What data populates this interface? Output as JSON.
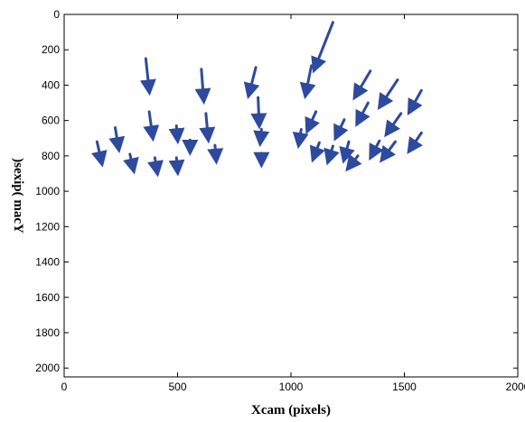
{
  "chart_data": {
    "type": "quiver",
    "title": "",
    "xlabel": "Xcam (pixels)",
    "ylabel": "Ycam (pixels)",
    "ylabel_rendered": ")sexip( macY",
    "xlim": [
      0,
      2000
    ],
    "ylim": [
      0,
      2050
    ],
    "y_reversed": true,
    "x_ticks": [
      "0",
      "500",
      "1000",
      "1500",
      "2000"
    ],
    "y_ticks": [
      "0",
      "200",
      "400",
      "600",
      "800",
      "1000",
      "1200",
      "1400",
      "1600",
      "1800",
      "2000"
    ],
    "x_tick_values": [
      0,
      500,
      1000,
      1500,
      2000
    ],
    "y_tick_values": [
      0,
      200,
      400,
      600,
      800,
      1000,
      1200,
      1400,
      1600,
      1800,
      2000
    ],
    "grid": false,
    "arrow_color": "#2e4a9e",
    "vectors": [
      {
        "x": 145,
        "y": 720,
        "x_end": 165,
        "y_end": 835
      },
      {
        "x": 225,
        "y": 640,
        "x_end": 240,
        "y_end": 755
      },
      {
        "x": 290,
        "y": 790,
        "x_end": 305,
        "y_end": 875
      },
      {
        "x": 360,
        "y": 250,
        "x_end": 375,
        "y_end": 430
      },
      {
        "x": 375,
        "y": 550,
        "x_end": 390,
        "y_end": 690
      },
      {
        "x": 400,
        "y": 810,
        "x_end": 410,
        "y_end": 890
      },
      {
        "x": 495,
        "y": 630,
        "x_end": 500,
        "y_end": 705
      },
      {
        "x": 495,
        "y": 810,
        "x_end": 500,
        "y_end": 885
      },
      {
        "x": 555,
        "y": 710,
        "x_end": 555,
        "y_end": 770
      },
      {
        "x": 605,
        "y": 310,
        "x_end": 615,
        "y_end": 480
      },
      {
        "x": 625,
        "y": 560,
        "x_end": 635,
        "y_end": 700
      },
      {
        "x": 665,
        "y": 740,
        "x_end": 670,
        "y_end": 820
      },
      {
        "x": 845,
        "y": 300,
        "x_end": 815,
        "y_end": 450
      },
      {
        "x": 855,
        "y": 470,
        "x_end": 860,
        "y_end": 620
      },
      {
        "x": 870,
        "y": 650,
        "x_end": 865,
        "y_end": 720
      },
      {
        "x": 870,
        "y": 785,
        "x_end": 870,
        "y_end": 840
      },
      {
        "x": 1185,
        "y": 45,
        "x_end": 1105,
        "y_end": 305
      },
      {
        "x": 1090,
        "y": 290,
        "x_end": 1065,
        "y_end": 450
      },
      {
        "x": 1045,
        "y": 650,
        "x_end": 1035,
        "y_end": 730
      },
      {
        "x": 1110,
        "y": 550,
        "x_end": 1075,
        "y_end": 650
      },
      {
        "x": 1125,
        "y": 725,
        "x_end": 1100,
        "y_end": 810
      },
      {
        "x": 1185,
        "y": 745,
        "x_end": 1165,
        "y_end": 825
      },
      {
        "x": 1235,
        "y": 595,
        "x_end": 1200,
        "y_end": 690
      },
      {
        "x": 1350,
        "y": 320,
        "x_end": 1285,
        "y_end": 460
      },
      {
        "x": 1340,
        "y": 500,
        "x_end": 1295,
        "y_end": 610
      },
      {
        "x": 1255,
        "y": 720,
        "x_end": 1235,
        "y_end": 815
      },
      {
        "x": 1295,
        "y": 800,
        "x_end": 1255,
        "y_end": 865
      },
      {
        "x": 1390,
        "y": 715,
        "x_end": 1355,
        "y_end": 800
      },
      {
        "x": 1485,
        "y": 560,
        "x_end": 1425,
        "y_end": 670
      },
      {
        "x": 1470,
        "y": 370,
        "x_end": 1395,
        "y_end": 515
      },
      {
        "x": 1575,
        "y": 430,
        "x_end": 1525,
        "y_end": 545
      },
      {
        "x": 1460,
        "y": 720,
        "x_end": 1405,
        "y_end": 815
      },
      {
        "x": 1575,
        "y": 670,
        "x_end": 1525,
        "y_end": 765
      }
    ]
  }
}
